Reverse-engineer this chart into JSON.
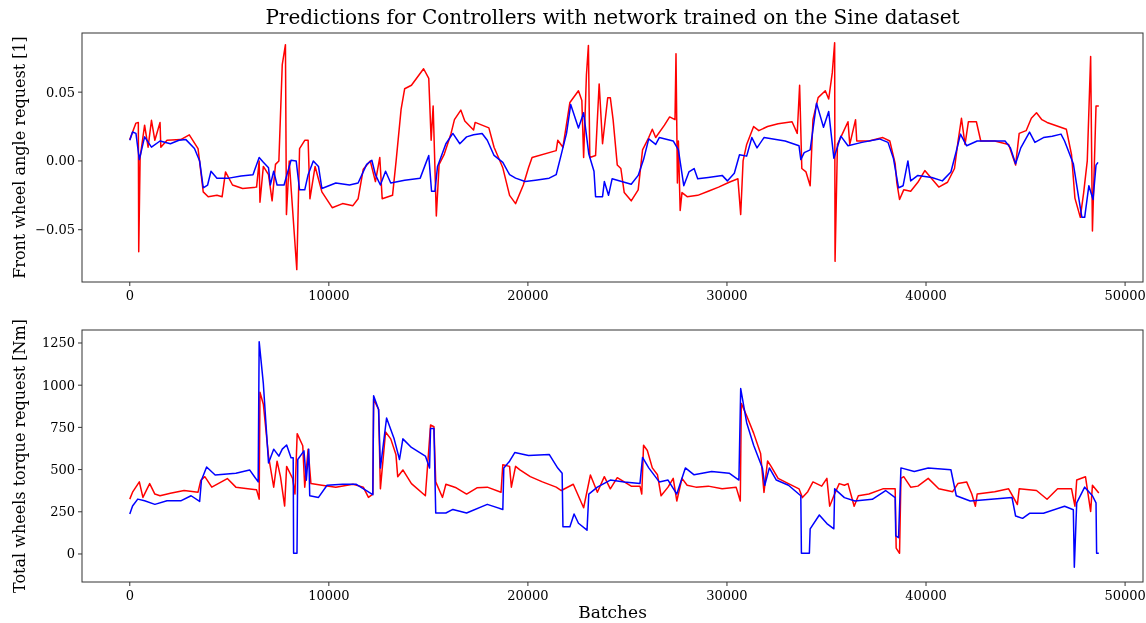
{
  "chart_data": [
    {
      "type": "line",
      "title": "Predictions for Controllers with network trained on the Sine dataset",
      "ylabel": "Front wheel angle request [1]",
      "xlim": [
        -2400,
        50900
      ],
      "xticks": [
        0,
        10000,
        20000,
        30000,
        40000,
        50000
      ],
      "ylim": [
        -0.088,
        0.093
      ],
      "yticks": [
        {
          "value": -0.05,
          "label": "−0.05"
        },
        {
          "value": 0,
          "label": "0.00"
        },
        0.05
      ],
      "grid": false,
      "marker": "none",
      "line_style": "solid",
      "series": [
        {
          "color": "#ff0000",
          "x": [
            0,
            310,
            430,
            450,
            520,
            745,
            920,
            1090,
            1260,
            1520,
            1560,
            1870,
            2560,
            2990,
            3430,
            3690,
            3940,
            4380,
            4640,
            4810,
            5160,
            5670,
            6370,
            6500,
            6540,
            6710,
            6970,
            7150,
            7320,
            7490,
            7660,
            7820,
            7870,
            8010,
            8390,
            8530,
            8790,
            8960,
            9050,
            9310,
            9650,
            10170,
            10690,
            11210,
            11470,
            11730,
            12080,
            12340,
            12560,
            12680,
            13200,
            13380,
            13630,
            13810,
            14150,
            14760,
            15020,
            15140,
            15240,
            15400,
            15540,
            15800,
            16140,
            16310,
            16630,
            16830,
            17270,
            17350,
            18040,
            18300,
            18740,
            19080,
            19380,
            19770,
            20030,
            20210,
            21420,
            21500,
            21760,
            22110,
            22540,
            22710,
            22800,
            22940,
            23040,
            23110,
            23400,
            23580,
            23750,
            24010,
            24140,
            24280,
            24490,
            24670,
            24840,
            25190,
            25540,
            25760,
            26070,
            26250,
            26420,
            26860,
            27120,
            27390,
            27440,
            27510,
            27560,
            27650,
            27740,
            28000,
            28530,
            29060,
            29580,
            30110,
            30550,
            30690,
            30810,
            30990,
            31340,
            31600,
            32040,
            32570,
            33270,
            33530,
            33650,
            33760,
            33970,
            34180,
            34320,
            34580,
            34940,
            35110,
            35290,
            35410,
            35430,
            35550,
            35810,
            36080,
            36170,
            36460,
            36520,
            37130,
            37830,
            38180,
            38450,
            38530,
            38670,
            38880,
            39230,
            39590,
            39940,
            40290,
            40640,
            41080,
            41430,
            41610,
            41780,
            41960,
            42130,
            42530,
            42750,
            43450,
            44150,
            44500,
            44680,
            45030,
            45290,
            45550,
            45820,
            46080,
            47050,
            47310,
            47480,
            47750,
            47920,
            48100,
            48270,
            48360,
            48540,
            48680
          ],
          "values": [
            0.0155,
            0.0275,
            0.028,
            -0.066,
            0.0025,
            0.026,
            0.01,
            0.0295,
            0.015,
            0.028,
            0.01,
            0.015,
            0.0155,
            0.019,
            0.009,
            -0.0225,
            -0.026,
            -0.025,
            -0.026,
            -0.008,
            -0.0175,
            -0.02,
            -0.019,
            0,
            -0.03,
            -0.004,
            -0.01,
            -0.029,
            -0.0025,
            0,
            0.07,
            0.0845,
            -0.039,
            0,
            -0.079,
            0.009,
            0.015,
            0.015,
            -0.0275,
            -0.004,
            -0.0225,
            -0.034,
            -0.031,
            -0.0325,
            -0.0275,
            -0.006,
            0,
            -0.015,
            0.0025,
            -0.0275,
            -0.025,
            0,
            0.0375,
            0.0525,
            0.055,
            0.067,
            0.06,
            0.015,
            0.04,
            -0.04,
            -0.0025,
            0.005,
            0.02,
            0.03,
            0.037,
            0.029,
            0.0225,
            0.028,
            0.024,
            0.01,
            -0.005,
            -0.025,
            -0.031,
            -0.0175,
            -0.005,
            0.0025,
            0.0075,
            0.015,
            0.01,
            0.0425,
            0.051,
            0.044,
            0.0025,
            0.0625,
            0.084,
            0.0025,
            0.004,
            0.056,
            0.0125,
            0.046,
            0.046,
            0.03,
            -0.003,
            -0.0055,
            -0.023,
            -0.029,
            -0.021,
            0.008,
            0.017,
            0.023,
            0.017,
            0.026,
            0.032,
            0.03,
            0.078,
            -0.016,
            0.0145,
            -0.036,
            -0.023,
            -0.026,
            -0.025,
            -0.022,
            -0.019,
            -0.0155,
            -0.013,
            -0.039,
            0,
            0.012,
            0.025,
            0.022,
            0.025,
            0.027,
            0.0285,
            0.02,
            0.055,
            -0.0055,
            -0.008,
            -0.018,
            0.03,
            0.046,
            0.051,
            0.045,
            0.064,
            0.086,
            -0.073,
            0.012,
            0.02,
            0.0285,
            0.012,
            0.03,
            0.0145,
            0.0145,
            0.017,
            0.0145,
            -0.002,
            -0.0155,
            -0.028,
            -0.021,
            -0.022,
            -0.0155,
            -0.007,
            -0.013,
            -0.019,
            -0.0155,
            -0.0055,
            0.0145,
            0.031,
            0.012,
            0.0285,
            0.0285,
            0.0145,
            0.0145,
            0.012,
            -0.003,
            0.02,
            0.022,
            0.031,
            0.035,
            0.03,
            0.028,
            0.023,
            0.0045,
            -0.027,
            -0.041,
            -0.023,
            0,
            0.076,
            -0.051,
            0.04,
            0.04
          ]
        },
        {
          "color": "#0000ff",
          "x": [
            0,
            140,
            310,
            480,
            745,
            1090,
            1520,
            2040,
            2470,
            2820,
            3250,
            3510,
            3690,
            3910,
            4080,
            4380,
            4980,
            5590,
            6190,
            6500,
            6710,
            6970,
            7060,
            7230,
            7400,
            7750,
            8100,
            8360,
            8530,
            8790,
            8960,
            9220,
            9480,
            9650,
            10350,
            11040,
            11470,
            11900,
            12160,
            12340,
            12590,
            12850,
            13110,
            13810,
            14590,
            14850,
            15020,
            15160,
            15330,
            15460,
            15880,
            16230,
            16580,
            16920,
            17270,
            17700,
            17960,
            18300,
            18740,
            19080,
            19380,
            19860,
            20380,
            21070,
            21420,
            21680,
            21940,
            22150,
            22540,
            22800,
            23060,
            23320,
            23400,
            23750,
            23840,
            24050,
            24230,
            24840,
            25190,
            25540,
            25810,
            26070,
            26420,
            26600,
            27300,
            27560,
            27830,
            28090,
            28350,
            28530,
            29060,
            29760,
            30020,
            30370,
            30630,
            30990,
            31250,
            31510,
            31860,
            32920,
            33620,
            33710,
            33880,
            34180,
            34500,
            34850,
            35110,
            35370,
            35720,
            36080,
            36780,
            37660,
            38090,
            38360,
            38620,
            38850,
            39090,
            39230,
            39590,
            40290,
            40820,
            41250,
            41520,
            41730,
            42040,
            42570,
            43450,
            43970,
            44240,
            44500,
            44760,
            45200,
            45470,
            45900,
            46340,
            46780,
            46960,
            47400,
            47660,
            47830,
            47970,
            48180,
            48390,
            48540,
            48640
          ],
          "values": [
            0.015,
            0.021,
            0.02,
            0.001,
            0.0175,
            0.01,
            0.0145,
            0.0125,
            0.015,
            0.0155,
            0.009,
            0,
            -0.0195,
            -0.0175,
            -0.0075,
            -0.0125,
            -0.0125,
            -0.011,
            -0.01,
            0.0025,
            -0.001,
            -0.005,
            -0.0175,
            -0.0075,
            -0.0175,
            -0.0175,
            0.0005,
            0,
            -0.021,
            -0.021,
            -0.01,
            0,
            -0.004,
            -0.02,
            -0.016,
            -0.0175,
            -0.016,
            -0.0025,
            0.0005,
            -0.01,
            -0.0175,
            -0.0075,
            -0.016,
            -0.014,
            -0.0125,
            -0.0025,
            0.004,
            -0.022,
            -0.022,
            -0.004,
            0.0125,
            0.02,
            0.0125,
            0.0175,
            0.019,
            0.02,
            0.015,
            0.004,
            -0.001,
            -0.01,
            -0.0125,
            -0.015,
            -0.014,
            -0.0125,
            -0.01,
            0.005,
            0.02,
            0.041,
            0.024,
            0.035,
            0.005,
            -0.0075,
            -0.026,
            -0.026,
            -0.015,
            -0.025,
            -0.013,
            -0.0155,
            -0.017,
            -0.0105,
            0.001,
            0.016,
            0.012,
            0.017,
            0.0145,
            0.008,
            -0.018,
            -0.008,
            -0.0055,
            -0.013,
            -0.012,
            -0.0105,
            -0.0145,
            -0.009,
            0.0045,
            0.0035,
            0.017,
            0.0095,
            0.017,
            0.0145,
            0.011,
            0.001,
            0.006,
            0.008,
            0.042,
            0.0245,
            0.036,
            0.002,
            0.018,
            0.011,
            0.0135,
            0.016,
            0.0135,
            0.002,
            -0.0195,
            -0.018,
            0,
            -0.0145,
            -0.0105,
            -0.012,
            -0.0145,
            -0.008,
            0.007,
            0.0195,
            0.011,
            0.0145,
            0.0145,
            0.0145,
            0.0095,
            -0.002,
            0.0095,
            0.021,
            0.0135,
            0.017,
            0.018,
            0.0195,
            0.0145,
            -0.002,
            -0.026,
            -0.041,
            -0.041,
            -0.018,
            -0.028,
            -0.003,
            -0.001
          ]
        }
      ]
    },
    {
      "type": "line",
      "xlabel": "Batches",
      "ylabel": "Total wheels torque request [Nm]",
      "xlim": [
        -2400,
        50900
      ],
      "xticks": [
        0,
        10000,
        20000,
        30000,
        40000,
        50000
      ],
      "ylim": [
        -166,
        1327
      ],
      "yticks": [
        0,
        250,
        500,
        750,
        1000,
        1250
      ],
      "grid": false,
      "marker": "none",
      "line_style": "solid",
      "series": [
        {
          "color": "#ff0000",
          "x": [
            0,
            140,
            480,
            660,
            1000,
            1260,
            1520,
            2040,
            2730,
            3430,
            3570,
            3770,
            4120,
            4900,
            5330,
            6370,
            6500,
            6540,
            6710,
            6970,
            7230,
            7400,
            7570,
            7780,
            7880,
            8180,
            8300,
            8410,
            8690,
            8790,
            8960,
            9100,
            9650,
            10350,
            11210,
            11730,
            11990,
            12210,
            12250,
            12500,
            12590,
            12850,
            13110,
            13370,
            13460,
            13720,
            14150,
            14850,
            15110,
            15280,
            15370,
            15710,
            15880,
            16400,
            16920,
            17440,
            17960,
            18650,
            18740,
            19080,
            19170,
            19380,
            19600,
            20120,
            20730,
            21420,
            21680,
            22280,
            22800,
            23140,
            23490,
            23840,
            24140,
            24490,
            24840,
            25190,
            25630,
            25720,
            25810,
            26000,
            26250,
            26510,
            26690,
            27040,
            27300,
            27480,
            27740,
            28000,
            28440,
            29060,
            29760,
            30460,
            30670,
            30720,
            30990,
            31340,
            31690,
            31860,
            32040,
            32210,
            32570,
            33090,
            33620,
            33790,
            34060,
            34320,
            34760,
            35020,
            35160,
            35370,
            35640,
            35900,
            36080,
            36390,
            36600,
            37130,
            37830,
            38450,
            38500,
            38670,
            38740,
            38880,
            39230,
            39590,
            40110,
            40640,
            41340,
            41600,
            42040,
            42300,
            42480,
            42570,
            43450,
            44150,
            44590,
            44680,
            45550,
            46080,
            46610,
            47310,
            47480,
            47570,
            48010,
            48270,
            48360,
            48680
          ],
          "values": [
            325,
            366,
            427,
            335,
            417,
            355,
            345,
            360,
            376,
            366,
            437,
            458,
            396,
            447,
            396,
            380,
            325,
            958,
            887,
            580,
            396,
            550,
            458,
            284,
            519,
            447,
            355,
            713,
            641,
            396,
            621,
            417,
            407,
            396,
            413,
            396,
            335,
            355,
            917,
            856,
            386,
            723,
            682,
            590,
            458,
            498,
            417,
            345,
            764,
            754,
            427,
            335,
            413,
            392,
            355,
            392,
            396,
            366,
            529,
            519,
            396,
            519,
            498,
            458,
            427,
            396,
            376,
            413,
            274,
            468,
            366,
            458,
            386,
            452,
            427,
            402,
            402,
            355,
            644,
            613,
            510,
            469,
            345,
            396,
            448,
            314,
            448,
            407,
            396,
            402,
            386,
            396,
            314,
            892,
            819,
            716,
            596,
            365,
            551,
            520,
            448,
            417,
            386,
            334,
            369,
            427,
            402,
            448,
            283,
            345,
            417,
            407,
            417,
            283,
            345,
            355,
            386,
            386,
            35,
            4,
            448,
            458,
            396,
            402,
            448,
            386,
            369,
            417,
            427,
            355,
            283,
            355,
            369,
            386,
            293,
            386,
            376,
            324,
            386,
            386,
            283,
            438,
            458,
            252,
            407,
            361
          ]
        },
        {
          "color": "#0000ff",
          "x": [
            0,
            140,
            400,
            745,
            1260,
            1870,
            2560,
            3080,
            3510,
            3600,
            3860,
            4290,
            5330,
            6020,
            6450,
            6500,
            6710,
            6970,
            7230,
            7490,
            7660,
            7880,
            8100,
            8210,
            8230,
            8400,
            8440,
            8750,
            8870,
            8990,
            9040,
            9480,
            9910,
            10690,
            11380,
            12210,
            12250,
            12500,
            12590,
            12900,
            13280,
            13550,
            13720,
            14150,
            14850,
            15060,
            15110,
            15280,
            15370,
            15880,
            16230,
            16920,
            17960,
            18740,
            18790,
            19080,
            19340,
            20030,
            21070,
            21500,
            21720,
            21760,
            22110,
            22320,
            22540,
            22970,
            23060,
            23490,
            24140,
            24840,
            25630,
            25760,
            26070,
            26600,
            27040,
            27480,
            27910,
            28350,
            29230,
            30110,
            30600,
            30690,
            30990,
            31340,
            31780,
            31900,
            32130,
            32480,
            33090,
            33710,
            33740,
            34140,
            34180,
            34640,
            35020,
            35370,
            35410,
            35900,
            36430,
            37300,
            37970,
            38450,
            38480,
            38620,
            38740,
            39410,
            40110,
            41250,
            41520,
            42220,
            43270,
            44320,
            44500,
            44850,
            45200,
            45900,
            46960,
            47400,
            47450,
            47570,
            47970,
            48360,
            48540,
            48570,
            48680
          ],
          "values": [
            237,
            284,
            325,
            315,
            294,
            315,
            315,
            345,
            311,
            437,
            515,
            468,
            478,
            498,
            427,
            1258,
            1009,
            539,
            621,
            580,
            621,
            646,
            570,
            570,
            4,
            4,
            560,
            611,
            437,
            621,
            345,
            335,
            407,
            413,
            413,
            351,
            938,
            856,
            509,
            805,
            682,
            560,
            682,
            631,
            580,
            509,
            744,
            744,
            243,
            243,
            264,
            243,
            294,
            264,
            509,
            550,
            601,
            584,
            590,
            509,
            478,
            161,
            161,
            237,
            182,
            141,
            355,
            396,
            438,
            427,
            417,
            572,
            510,
            427,
            438,
            355,
            510,
            469,
            489,
            479,
            438,
            980,
            778,
            644,
            510,
            407,
            510,
            438,
            407,
            345,
            4,
            4,
            149,
            231,
            180,
            149,
            386,
            334,
            314,
            324,
            376,
            334,
            107,
            97,
            510,
            489,
            510,
            499,
            345,
            314,
            324,
            334,
            225,
            211,
            241,
            241,
            283,
            262,
            -78,
            303,
            396,
            345,
            303,
            4,
            4
          ]
        }
      ]
    }
  ]
}
